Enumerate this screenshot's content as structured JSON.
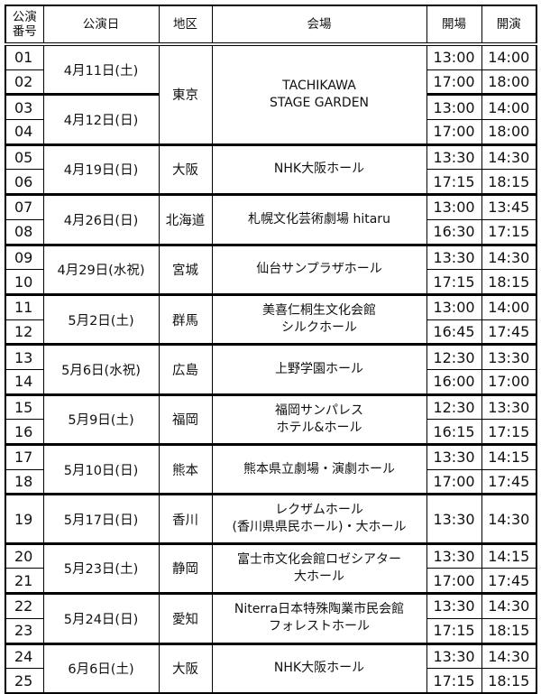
{
  "headers": {
    "no_line1": "公演",
    "no_line2": "番号",
    "date": "公演日",
    "region": "地区",
    "venue": "会場",
    "open": "開場",
    "start": "開演"
  },
  "groups": [
    {
      "region": "東京",
      "venue": [
        "TACHIKAWA",
        "STAGE GARDEN"
      ],
      "dates": [
        {
          "date": "4月11日(土)",
          "perfs": [
            {
              "no": "01",
              "open": "13:00",
              "start": "14:00"
            },
            {
              "no": "02",
              "open": "17:00",
              "start": "18:00"
            }
          ]
        },
        {
          "date": "4月12日(日)",
          "perfs": [
            {
              "no": "03",
              "open": "13:00",
              "start": "14:00"
            },
            {
              "no": "04",
              "open": "17:00",
              "start": "18:00"
            }
          ]
        }
      ]
    },
    {
      "region": "大阪",
      "venue": [
        "NHK大阪ホール"
      ],
      "dates": [
        {
          "date": "4月19日(日)",
          "perfs": [
            {
              "no": "05",
              "open": "13:30",
              "start": "14:30"
            },
            {
              "no": "06",
              "open": "17:15",
              "start": "18:15"
            }
          ]
        }
      ]
    },
    {
      "region": "北海道",
      "venue": [
        "札幌文化芸術劇場 hitaru"
      ],
      "dates": [
        {
          "date": "4月26日(日)",
          "perfs": [
            {
              "no": "07",
              "open": "13:00",
              "start": "13:45"
            },
            {
              "no": "08",
              "open": "16:30",
              "start": "17:15"
            }
          ]
        }
      ]
    },
    {
      "region": "宮城",
      "venue": [
        "仙台サンプラザホール"
      ],
      "dates": [
        {
          "date": "4月29日(水祝)",
          "perfs": [
            {
              "no": "09",
              "open": "13:30",
              "start": "14:30"
            },
            {
              "no": "10",
              "open": "17:15",
              "start": "18:15"
            }
          ]
        }
      ]
    },
    {
      "region": "群馬",
      "venue": [
        "美喜仁桐生文化会館",
        "シルクホール"
      ],
      "dates": [
        {
          "date": "5月2日(土)",
          "perfs": [
            {
              "no": "11",
              "open": "13:00",
              "start": "14:00"
            },
            {
              "no": "12",
              "open": "16:45",
              "start": "17:45"
            }
          ]
        }
      ]
    },
    {
      "region": "広島",
      "venue": [
        "上野学園ホール"
      ],
      "dates": [
        {
          "date": "5月6日(水祝)",
          "perfs": [
            {
              "no": "13",
              "open": "12:30",
              "start": "13:30"
            },
            {
              "no": "14",
              "open": "16:00",
              "start": "17:00"
            }
          ]
        }
      ]
    },
    {
      "region": "福岡",
      "venue": [
        "福岡サンパレス",
        "ホテル&ホール"
      ],
      "dates": [
        {
          "date": "5月9日(土)",
          "perfs": [
            {
              "no": "15",
              "open": "12:30",
              "start": "13:30"
            },
            {
              "no": "16",
              "open": "16:15",
              "start": "17:15"
            }
          ]
        }
      ]
    },
    {
      "region": "熊本",
      "venue": [
        "熊本県立劇場・演劇ホール"
      ],
      "dates": [
        {
          "date": "5月10日(日)",
          "perfs": [
            {
              "no": "17",
              "open": "13:30",
              "start": "14:15"
            },
            {
              "no": "18",
              "open": "17:00",
              "start": "17:45"
            }
          ]
        }
      ]
    },
    {
      "region": "香川",
      "venue": [
        "レクザムホール",
        "(香川県県民ホール)・大ホール"
      ],
      "dates": [
        {
          "date": "5月17日(日)",
          "perfs": [
            {
              "no": "19",
              "open": "13:30",
              "start": "14:30"
            }
          ]
        }
      ]
    },
    {
      "region": "静岡",
      "venue": [
        "富士市文化会館ロゼシアター",
        "大ホール"
      ],
      "dates": [
        {
          "date": "5月23日(土)",
          "perfs": [
            {
              "no": "20",
              "open": "13:30",
              "start": "14:15"
            },
            {
              "no": "21",
              "open": "17:00",
              "start": "17:45"
            }
          ]
        }
      ]
    },
    {
      "region": "愛知",
      "venue": [
        "Niterra日本特殊陶業市民会館",
        "フォレストホール"
      ],
      "dates": [
        {
          "date": "5月24日(日)",
          "perfs": [
            {
              "no": "22",
              "open": "13:30",
              "start": "14:30"
            },
            {
              "no": "23",
              "open": "17:15",
              "start": "18:15"
            }
          ]
        }
      ]
    },
    {
      "region": "大阪",
      "venue": [
        "NHK大阪ホール"
      ],
      "dates": [
        {
          "date": "6月6日(土)",
          "perfs": [
            {
              "no": "24",
              "open": "13:30",
              "start": "14:30"
            },
            {
              "no": "25",
              "open": "17:15",
              "start": "18:15"
            }
          ]
        }
      ]
    }
  ]
}
